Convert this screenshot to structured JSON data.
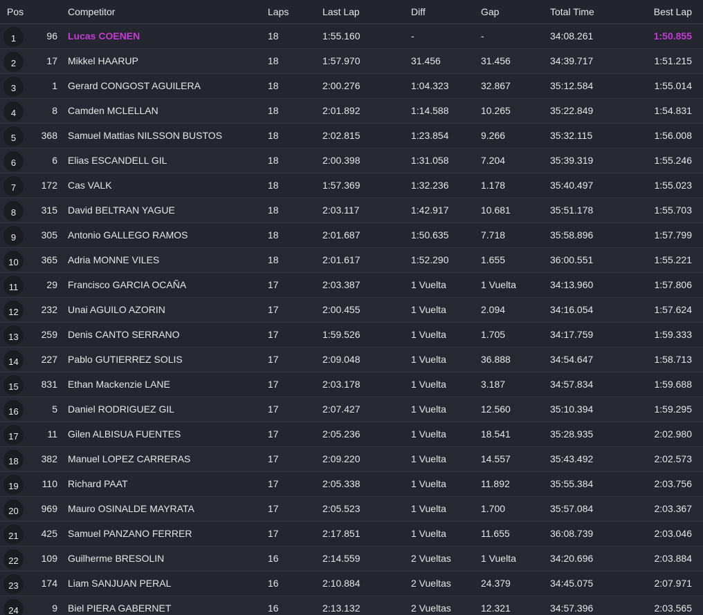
{
  "colors": {
    "background": "#22252e",
    "text": "#e6e7ea",
    "highlight": "#c43bd6"
  },
  "header": {
    "pos": "Pos",
    "competitor": "Competitor",
    "laps": "Laps",
    "last_lap": "Last Lap",
    "diff": "Diff",
    "gap": "Gap",
    "total_time": "Total Time",
    "best_lap": "Best Lap"
  },
  "rows": [
    {
      "pos": "1",
      "num": "96",
      "name": "Lucas COENEN",
      "laps": "18",
      "last": "1:55.160",
      "diff": "-",
      "gap": "-",
      "total": "34:08.261",
      "best": "1:50.855",
      "highlight": true
    },
    {
      "pos": "2",
      "num": "17",
      "name": "Mikkel HAARUP",
      "laps": "18",
      "last": "1:57.970",
      "diff": "31.456",
      "gap": "31.456",
      "total": "34:39.717",
      "best": "1:51.215"
    },
    {
      "pos": "3",
      "num": "1",
      "name": "Gerard CONGOST AGUILERA",
      "laps": "18",
      "last": "2:00.276",
      "diff": "1:04.323",
      "gap": "32.867",
      "total": "35:12.584",
      "best": "1:55.014"
    },
    {
      "pos": "4",
      "num": "8",
      "name": "Camden MCLELLAN",
      "laps": "18",
      "last": "2:01.892",
      "diff": "1:14.588",
      "gap": "10.265",
      "total": "35:22.849",
      "best": "1:54.831"
    },
    {
      "pos": "5",
      "num": "368",
      "name": "Samuel Mattias NILSSON BUSTOS",
      "laps": "18",
      "last": "2:02.815",
      "diff": "1:23.854",
      "gap": "9.266",
      "total": "35:32.115",
      "best": "1:56.008"
    },
    {
      "pos": "6",
      "num": "6",
      "name": "Elias ESCANDELL GIL",
      "laps": "18",
      "last": "2:00.398",
      "diff": "1:31.058",
      "gap": "7.204",
      "total": "35:39.319",
      "best": "1:55.246"
    },
    {
      "pos": "7",
      "num": "172",
      "name": "Cas VALK",
      "laps": "18",
      "last": "1:57.369",
      "diff": "1:32.236",
      "gap": "1.178",
      "total": "35:40.497",
      "best": "1:55.023"
    },
    {
      "pos": "8",
      "num": "315",
      "name": "David BELTRAN YAGUE",
      "laps": "18",
      "last": "2:03.117",
      "diff": "1:42.917",
      "gap": "10.681",
      "total": "35:51.178",
      "best": "1:55.703"
    },
    {
      "pos": "9",
      "num": "305",
      "name": "Antonio GALLEGO RAMOS",
      "laps": "18",
      "last": "2:01.687",
      "diff": "1:50.635",
      "gap": "7.718",
      "total": "35:58.896",
      "best": "1:57.799"
    },
    {
      "pos": "10",
      "num": "365",
      "name": "Adria MONNE VILES",
      "laps": "18",
      "last": "2:01.617",
      "diff": "1:52.290",
      "gap": "1.655",
      "total": "36:00.551",
      "best": "1:55.221"
    },
    {
      "pos": "11",
      "num": "29",
      "name": "Francisco GARCIA OCAÑA",
      "laps": "17",
      "last": "2:03.387",
      "diff": "1 Vuelta",
      "gap": "1 Vuelta",
      "total": "34:13.960",
      "best": "1:57.806"
    },
    {
      "pos": "12",
      "num": "232",
      "name": "Unai AGUILO AZORIN",
      "laps": "17",
      "last": "2:00.455",
      "diff": "1 Vuelta",
      "gap": "2.094",
      "total": "34:16.054",
      "best": "1:57.624"
    },
    {
      "pos": "13",
      "num": "259",
      "name": "Denis CANTO SERRANO",
      "laps": "17",
      "last": "1:59.526",
      "diff": "1 Vuelta",
      "gap": "1.705",
      "total": "34:17.759",
      "best": "1:59.333"
    },
    {
      "pos": "14",
      "num": "227",
      "name": "Pablo GUTIERREZ SOLIS",
      "laps": "17",
      "last": "2:09.048",
      "diff": "1 Vuelta",
      "gap": "36.888",
      "total": "34:54.647",
      "best": "1:58.713"
    },
    {
      "pos": "15",
      "num": "831",
      "name": "Ethan Mackenzie LANE",
      "laps": "17",
      "last": "2:03.178",
      "diff": "1 Vuelta",
      "gap": "3.187",
      "total": "34:57.834",
      "best": "1:59.688"
    },
    {
      "pos": "16",
      "num": "5",
      "name": "Daniel RODRIGUEZ GIL",
      "laps": "17",
      "last": "2:07.427",
      "diff": "1 Vuelta",
      "gap": "12.560",
      "total": "35:10.394",
      "best": "1:59.295"
    },
    {
      "pos": "17",
      "num": "11",
      "name": "Gilen ALBISUA FUENTES",
      "laps": "17",
      "last": "2:05.236",
      "diff": "1 Vuelta",
      "gap": "18.541",
      "total": "35:28.935",
      "best": "2:02.980"
    },
    {
      "pos": "18",
      "num": "382",
      "name": "Manuel LOPEZ CARRERAS",
      "laps": "17",
      "last": "2:09.220",
      "diff": "1 Vuelta",
      "gap": "14.557",
      "total": "35:43.492",
      "best": "2:02.573"
    },
    {
      "pos": "19",
      "num": "110",
      "name": "Richard PAAT",
      "laps": "17",
      "last": "2:05.338",
      "diff": "1 Vuelta",
      "gap": "11.892",
      "total": "35:55.384",
      "best": "2:03.756"
    },
    {
      "pos": "20",
      "num": "969",
      "name": "Mauro OSINALDE MAYRATA",
      "laps": "17",
      "last": "2:05.523",
      "diff": "1 Vuelta",
      "gap": "1.700",
      "total": "35:57.084",
      "best": "2:03.367"
    },
    {
      "pos": "21",
      "num": "425",
      "name": "Samuel PANZANO FERRER",
      "laps": "17",
      "last": "2:17.851",
      "diff": "1 Vuelta",
      "gap": "11.655",
      "total": "36:08.739",
      "best": "2:03.046"
    },
    {
      "pos": "22",
      "num": "109",
      "name": "Guilherme BRESOLIN",
      "laps": "16",
      "last": "2:14.559",
      "diff": "2 Vueltas",
      "gap": "1 Vuelta",
      "total": "34:20.696",
      "best": "2:03.884"
    },
    {
      "pos": "23",
      "num": "174",
      "name": "Liam SANJUAN PERAL",
      "laps": "16",
      "last": "2:10.884",
      "diff": "2 Vueltas",
      "gap": "24.379",
      "total": "34:45.075",
      "best": "2:07.971"
    },
    {
      "pos": "24",
      "num": "9",
      "name": "Biel PIERA GABERNET",
      "laps": "16",
      "last": "2:13.132",
      "diff": "2 Vueltas",
      "gap": "12.321",
      "total": "34:57.396",
      "best": "2:03.565"
    }
  ]
}
